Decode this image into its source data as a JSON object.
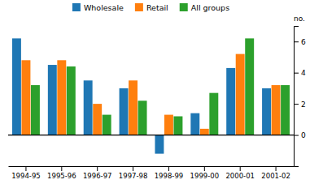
{
  "chart_data": {
    "type": "bar",
    "categories": [
      "1994-95",
      "1995-96",
      "1996-97",
      "1997-98",
      "1998-99",
      "1999-00",
      "2000-01",
      "2001-02"
    ],
    "series": [
      {
        "name": "Wholesale",
        "values": [
          6.2,
          4.5,
          3.5,
          3.0,
          -1.2,
          1.4,
          4.3,
          3.0
        ]
      },
      {
        "name": "Retail",
        "values": [
          4.8,
          4.8,
          2.0,
          3.5,
          1.3,
          0.4,
          5.2,
          3.2
        ]
      },
      {
        "name": "All groups",
        "values": [
          3.2,
          4.4,
          1.3,
          2.2,
          1.2,
          2.7,
          6.2,
          3.2
        ]
      }
    ],
    "y_label": "no.",
    "ylim": [
      -2,
      7
    ],
    "yticks": [
      0,
      2,
      4,
      6
    ],
    "grid": false,
    "legend": "top"
  }
}
